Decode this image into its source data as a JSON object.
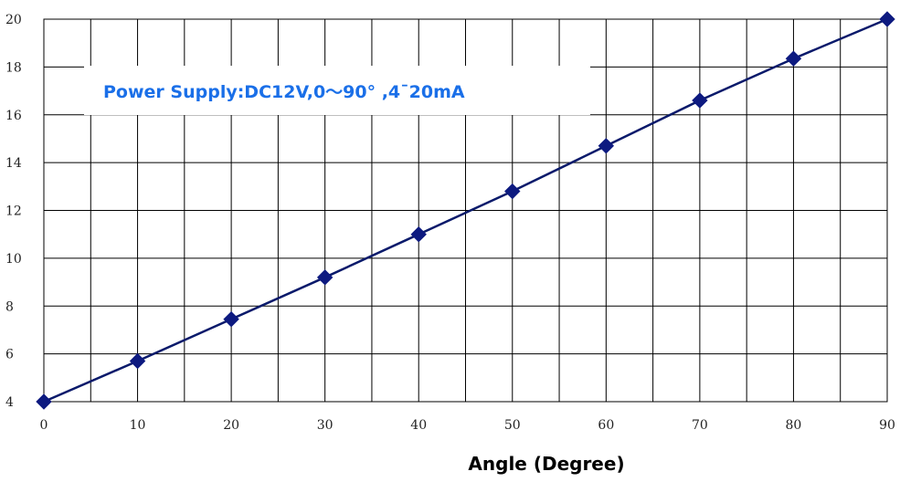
{
  "chart_data": {
    "type": "line",
    "x": [
      0,
      10,
      20,
      30,
      40,
      50,
      60,
      70,
      80,
      90
    ],
    "y": [
      4,
      5.7,
      7.45,
      9.2,
      11,
      12.8,
      14.7,
      16.6,
      18.35,
      20
    ],
    "xlim": [
      0,
      90
    ],
    "ylim": [
      4,
      20
    ],
    "x_ticks": [
      0,
      10,
      20,
      30,
      40,
      50,
      60,
      70,
      80,
      90
    ],
    "y_ticks": [
      4,
      6,
      8,
      10,
      12,
      14,
      16,
      18,
      20
    ],
    "x_tick_labels": [
      "0",
      "10",
      "20",
      "30",
      "40",
      "50",
      "60",
      "70",
      "80",
      "90"
    ],
    "y_tick_labels": [
      "4",
      "6",
      "8",
      "10",
      "12",
      "14",
      "16",
      "18",
      "20"
    ],
    "xlabel": "Angle (Degree)",
    "ylabel": "",
    "title": "",
    "annotation": "Power Supply:DC12V,0～90° ,4¯20mA",
    "grid": true,
    "marker": "diamond",
    "colors": {
      "line": "#0a1a6b",
      "marker": "#0d1a80",
      "annotation": "#1a6fe8",
      "grid": "#000000"
    }
  }
}
